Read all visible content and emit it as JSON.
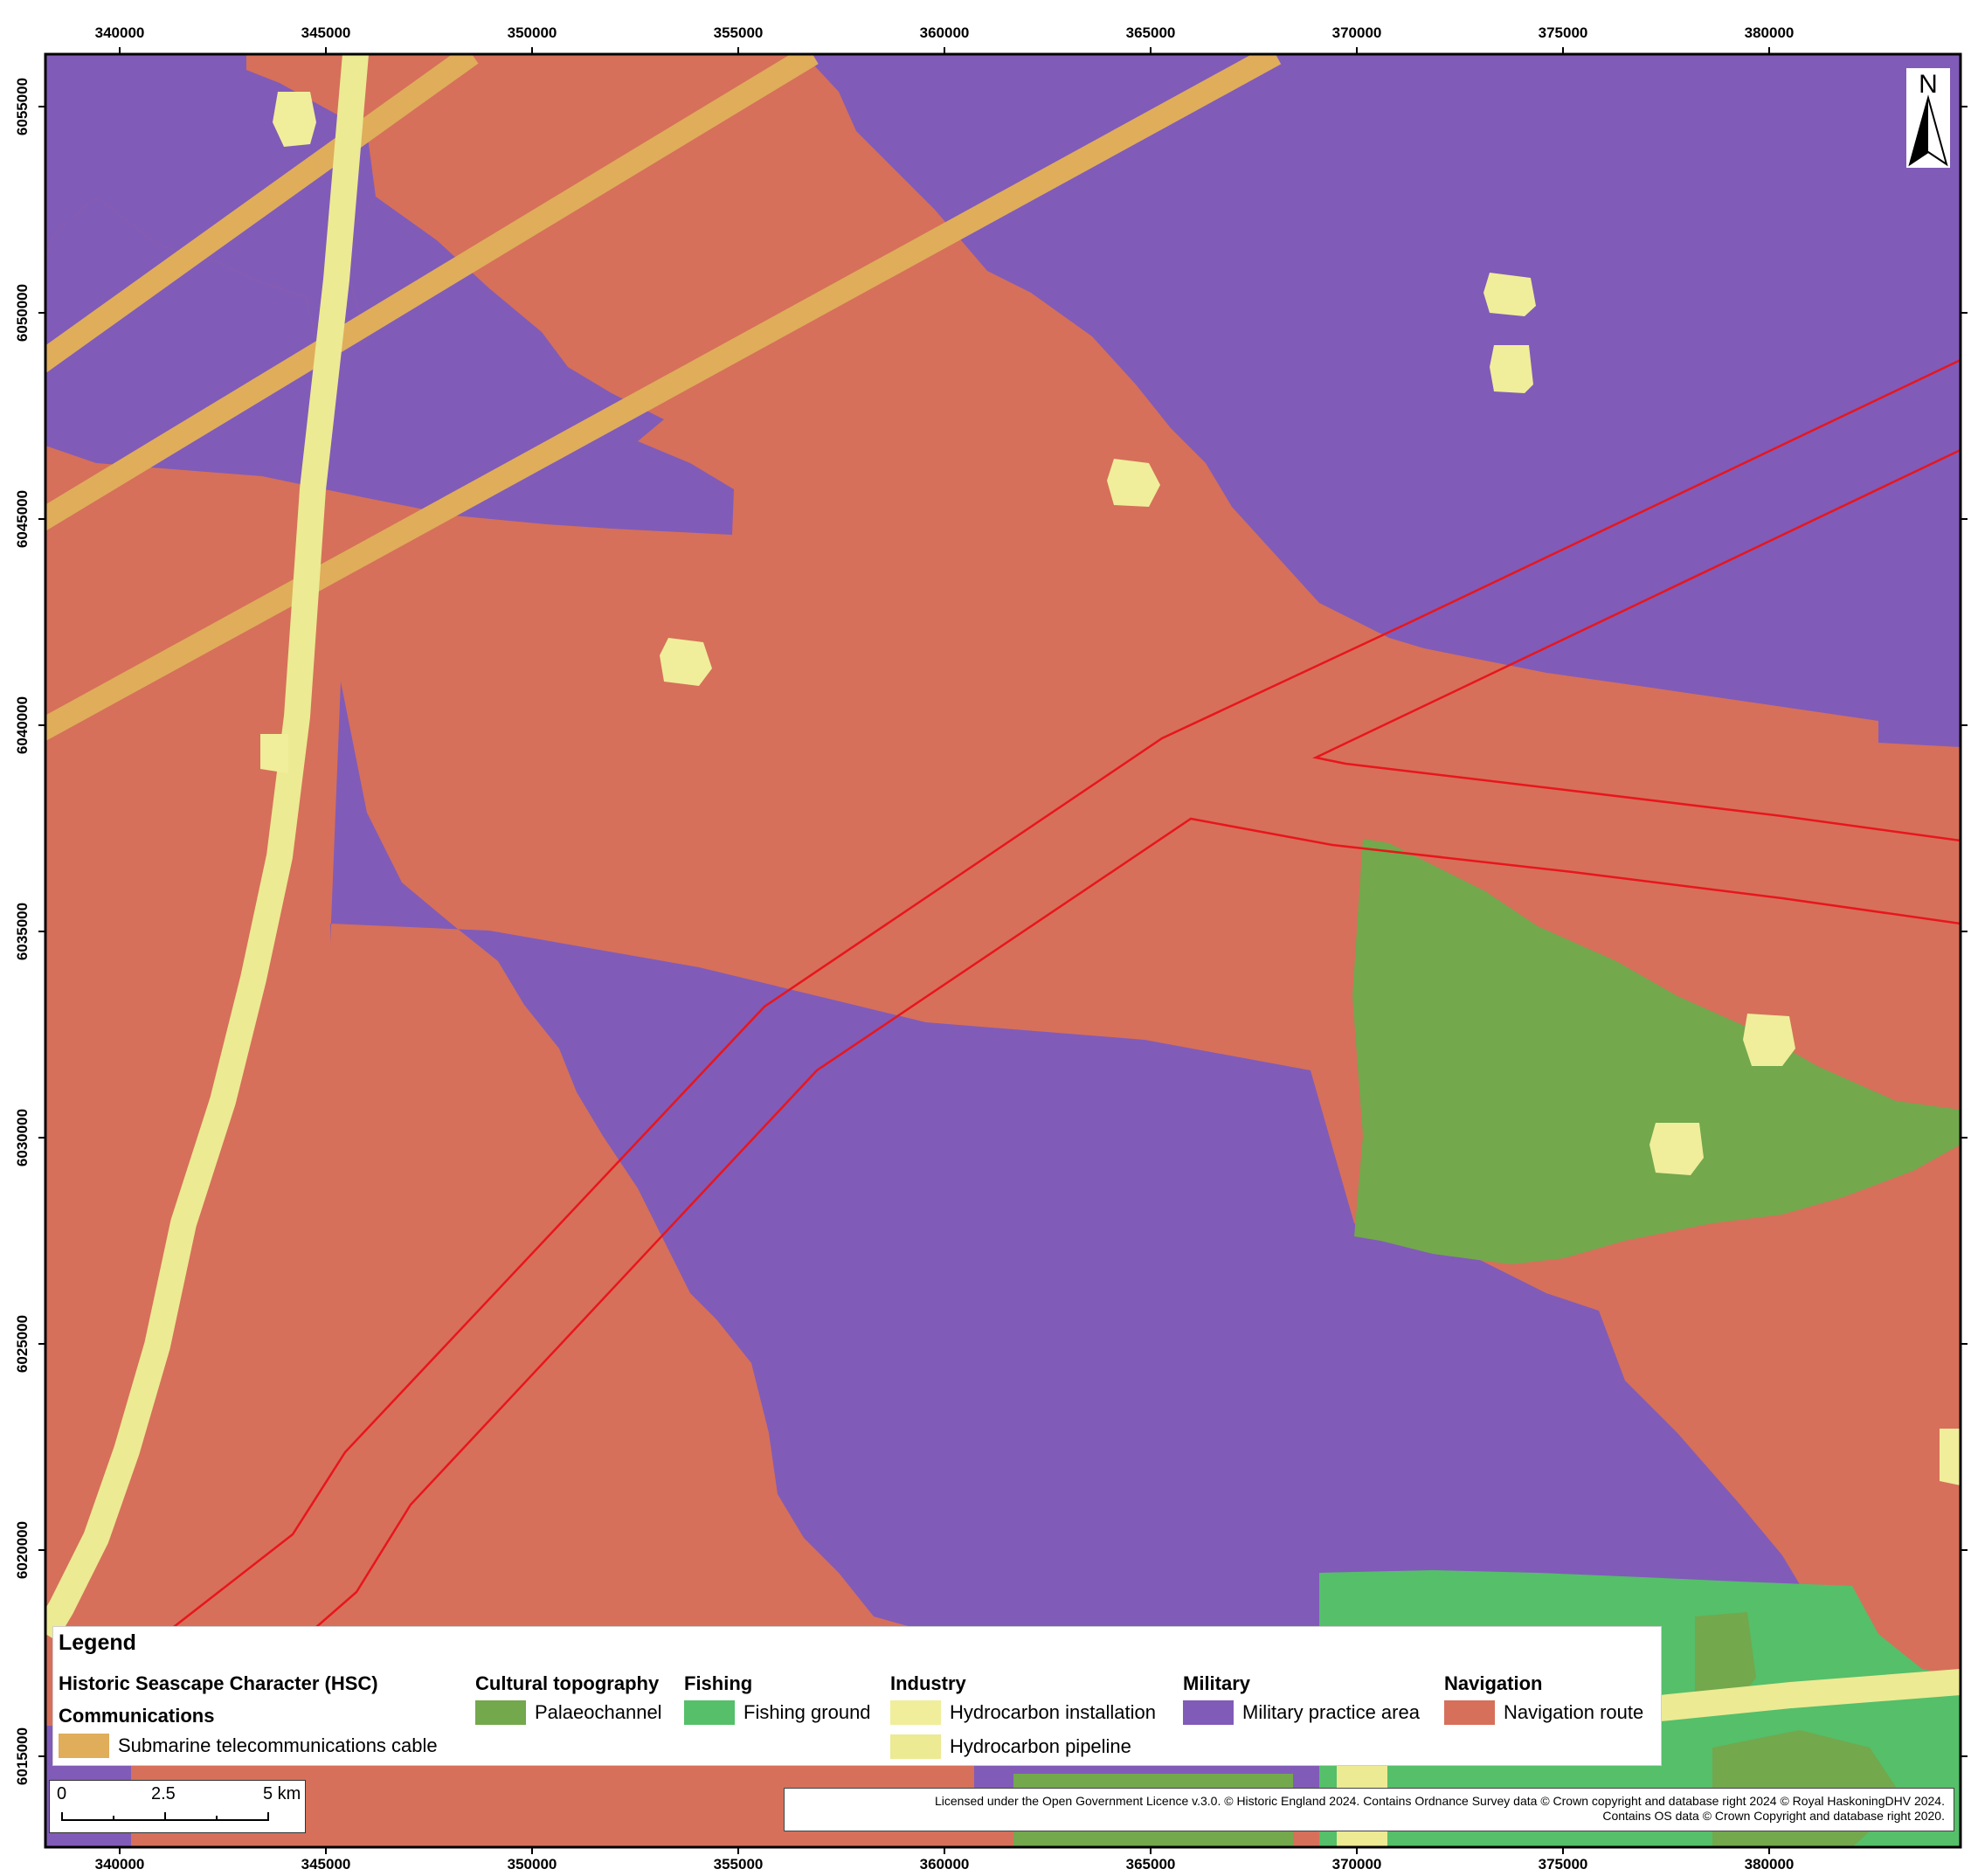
{
  "map": {
    "x_ticks": [
      "340000",
      "345000",
      "350000",
      "355000",
      "360000",
      "365000",
      "370000",
      "375000",
      "380000"
    ],
    "y_ticks": [
      "6055000",
      "6050000",
      "6045000",
      "6040000",
      "6035000",
      "6030000",
      "6025000",
      "6020000",
      "6015000"
    ],
    "north_label": "N",
    "colors": {
      "navigation": "#d6705a",
      "military": "#815bb8",
      "cable": "#e0ad5b",
      "pipeline": "#ecea93",
      "installation": "#f0ee9a",
      "palaeochannel": "#73a84d",
      "fishing": "#55bf6a",
      "boundary": "#e8161c"
    }
  },
  "legend": {
    "title": "Legend",
    "hsc_heading": "Historic Seascape Character (HSC)",
    "communications": {
      "heading": "Communications",
      "items": [
        {
          "label": "Submarine telecommunications cable",
          "color": "#e0ad5b"
        }
      ]
    },
    "cultural": {
      "heading": "Cultural topography",
      "items": [
        {
          "label": "Palaeochannel",
          "color": "#73a84d"
        }
      ]
    },
    "fishing": {
      "heading": "Fishing",
      "items": [
        {
          "label": "Fishing ground",
          "color": "#55bf6a"
        }
      ]
    },
    "industry": {
      "heading": "Industry",
      "items": [
        {
          "label": "Hydrocarbon installation",
          "color": "#f0ee9a"
        },
        {
          "label": "Hydrocarbon pipeline",
          "color": "#ecea93"
        }
      ]
    },
    "military": {
      "heading": "Military",
      "items": [
        {
          "label": "Military practice area",
          "color": "#815bb8"
        }
      ]
    },
    "navigation": {
      "heading": "Navigation",
      "items": [
        {
          "label": "Navigation route",
          "color": "#d6705a"
        }
      ]
    }
  },
  "scalebar": {
    "label_0": "0",
    "label_mid": "2.5",
    "label_end": "5 km"
  },
  "credits": {
    "line1": "Licensed under the Open Government Licence v.3.0. © Historic England 2024. Contains Ordnance Survey data © Crown copyright and database right 2024 © Royal HaskoningDHV 2024.",
    "line2": "Contains OS data © Crown Copyright and database right 2020."
  }
}
